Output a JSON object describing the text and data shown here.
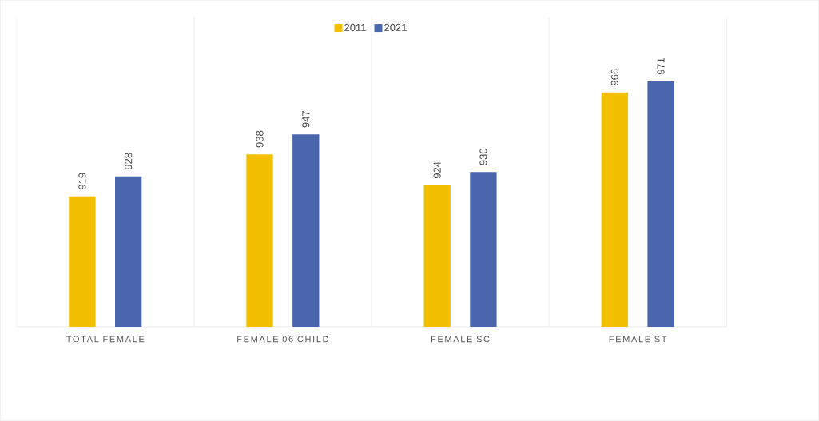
{
  "chart_data": {
    "type": "bar",
    "categories": [
      "TOTAL FEMALE",
      "FEMALE 06 CHILD",
      "FEMALE SC",
      "FEMALE ST"
    ],
    "series": [
      {
        "name": "2011",
        "color": "#f2c000",
        "values": [
          919,
          938,
          924,
          966
        ]
      },
      {
        "name": "2021",
        "color": "#4a67ad",
        "values": [
          928,
          947,
          930,
          971
        ]
      }
    ],
    "ylim": [
      860,
      1000
    ],
    "data_labels": true,
    "legend": "top",
    "grid": "x"
  }
}
